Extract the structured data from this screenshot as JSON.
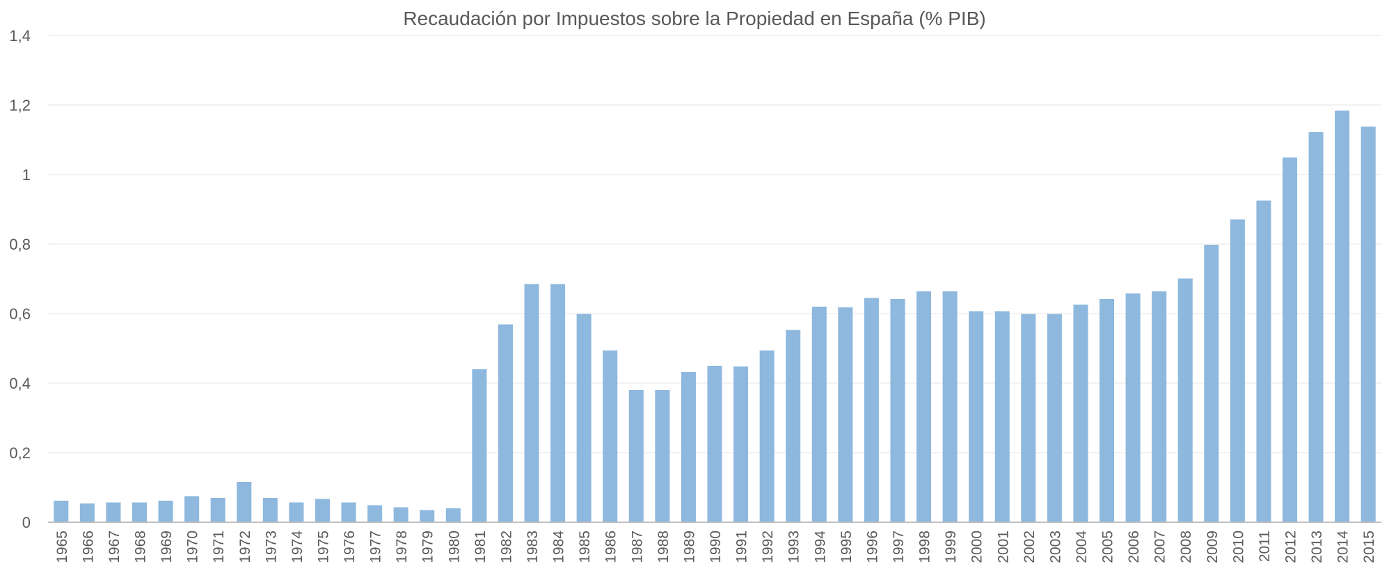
{
  "chart_data": {
    "type": "bar",
    "title": "Recaudación por Impuestos sobre la Propiedad en España (% PIB)",
    "xlabel": "",
    "ylabel": "",
    "ylim": [
      0,
      1.4
    ],
    "yticks": [
      "0",
      "0,2",
      "0,4",
      "0,6",
      "0,8",
      "1",
      "1,2",
      "1,4"
    ],
    "grid": true,
    "bar_color": "#8EB8DE",
    "categories": [
      "1965",
      "1966",
      "1967",
      "1968",
      "1969",
      "1970",
      "1971",
      "1972",
      "1973",
      "1974",
      "1975",
      "1976",
      "1977",
      "1978",
      "1979",
      "1980",
      "1981",
      "1982",
      "1983",
      "1984",
      "1985",
      "1986",
      "1987",
      "1988",
      "1989",
      "1990",
      "1991",
      "1992",
      "1993",
      "1994",
      "1995",
      "1996",
      "1997",
      "1998",
      "1999",
      "2000",
      "2001",
      "2002",
      "2003",
      "2004",
      "2005",
      "2006",
      "2007",
      "2008",
      "2009",
      "2010",
      "2011",
      "2012",
      "2013",
      "2014",
      "2015"
    ],
    "values": [
      0.062,
      0.054,
      0.057,
      0.057,
      0.062,
      0.075,
      0.07,
      0.116,
      0.07,
      0.057,
      0.067,
      0.057,
      0.049,
      0.043,
      0.035,
      0.04,
      0.44,
      0.569,
      0.685,
      0.685,
      0.599,
      0.494,
      0.38,
      0.38,
      0.432,
      0.45,
      0.448,
      0.494,
      0.553,
      0.62,
      0.618,
      0.645,
      0.642,
      0.664,
      0.664,
      0.607,
      0.607,
      0.599,
      0.599,
      0.626,
      0.642,
      0.658,
      0.664,
      0.701,
      0.798,
      0.871,
      0.925,
      1.049,
      1.122,
      1.184,
      1.138
    ]
  }
}
